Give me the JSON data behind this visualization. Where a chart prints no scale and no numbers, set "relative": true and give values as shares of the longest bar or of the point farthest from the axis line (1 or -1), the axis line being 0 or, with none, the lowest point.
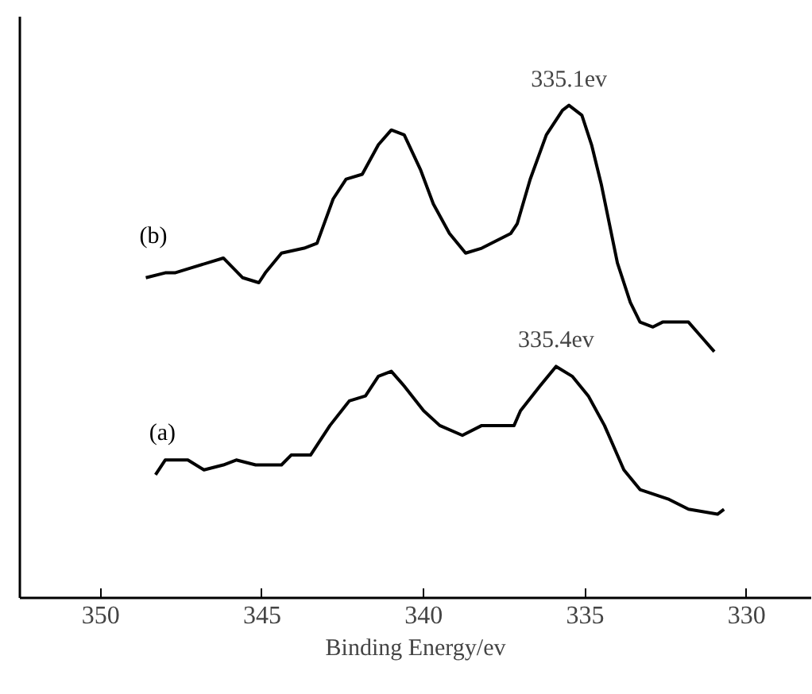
{
  "chart_data": {
    "type": "line",
    "xlabel": "Binding Energy/ev",
    "relative": true,
    "xlim": [
      352.5,
      328
    ],
    "xticks": [
      350,
      345,
      340,
      335,
      330
    ],
    "grid": false,
    "marker": "none",
    "line_style": "solid",
    "series": [
      {
        "name": "(b)",
        "color": "#000000",
        "x": [
          348.6,
          348.0,
          347.7,
          347.2,
          346.2,
          345.9,
          345.6,
          345.1,
          344.9,
          344.4,
          343.7,
          343.3,
          342.8,
          342.4,
          341.9,
          341.4,
          341.0,
          340.6,
          340.1,
          339.7,
          339.2,
          338.7,
          338.2,
          337.3,
          337.1,
          336.7,
          336.2,
          335.7,
          335.5,
          335.1,
          334.8,
          334.5,
          334.0,
          333.6,
          333.3,
          332.9,
          332.6,
          331.8,
          331.4,
          331.0
        ],
        "values": [
          0.65,
          0.66,
          0.66,
          0.67,
          0.69,
          0.67,
          0.65,
          0.64,
          0.66,
          0.7,
          0.71,
          0.72,
          0.81,
          0.85,
          0.86,
          0.92,
          0.95,
          0.94,
          0.87,
          0.8,
          0.74,
          0.7,
          0.71,
          0.74,
          0.76,
          0.85,
          0.94,
          0.99,
          1.0,
          0.98,
          0.92,
          0.84,
          0.68,
          0.6,
          0.56,
          0.55,
          0.56,
          0.56,
          0.53,
          0.5
        ]
      },
      {
        "name": "(a)",
        "color": "#000000",
        "x": [
          348.3,
          348.0,
          347.3,
          346.8,
          346.2,
          345.8,
          345.2,
          344.7,
          344.4,
          344.1,
          343.5,
          342.9,
          342.3,
          341.8,
          341.4,
          341.0,
          340.6,
          340.0,
          339.5,
          338.8,
          338.2,
          337.2,
          337.0,
          336.4,
          335.9,
          335.4,
          334.9,
          334.4,
          333.8,
          333.3,
          332.4,
          331.8,
          330.9,
          330.7
        ],
        "values": [
          0.25,
          0.28,
          0.28,
          0.26,
          0.27,
          0.28,
          0.27,
          0.27,
          0.27,
          0.29,
          0.29,
          0.35,
          0.4,
          0.41,
          0.45,
          0.46,
          0.43,
          0.38,
          0.35,
          0.33,
          0.35,
          0.35,
          0.38,
          0.43,
          0.47,
          0.45,
          0.41,
          0.35,
          0.26,
          0.22,
          0.2,
          0.18,
          0.17,
          0.18
        ]
      }
    ],
    "annotations": [
      {
        "text": "335.1ev",
        "x": 335.5,
        "y": 1.0
      },
      {
        "text": "335.4ev",
        "x": 335.9,
        "y": 0.47
      }
    ]
  }
}
